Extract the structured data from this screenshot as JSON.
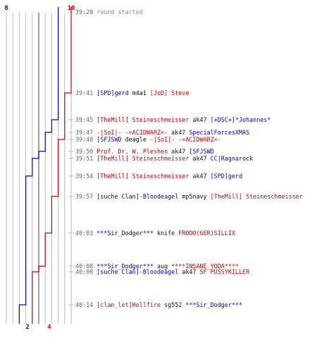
{
  "counts": {
    "blue_start": "8",
    "red_start": "10",
    "blue_end": "2",
    "red_end": "4"
  },
  "colors": {
    "blue_team": "#0000cc",
    "red_team": "#cc0000",
    "neutral": "#111111",
    "time": "#666666",
    "grid": "#bbbbbb",
    "centerline": "#888888"
  },
  "events": [
    {
      "time": "39:28",
      "parts": [
        {
          "text": "round started",
          "color": "grey"
        }
      ]
    },
    {
      "time": "39:41",
      "parts": [
        {
          "text": "[SPD]gerd",
          "color": "blue"
        },
        {
          "text": " m4a1 ",
          "color": "black"
        },
        {
          "text": "[JoD] Steve",
          "color": "red"
        }
      ]
    },
    {
      "time": "39:45",
      "parts": [
        {
          "text": "[TheMill] Steineschmeisser",
          "color": "red"
        },
        {
          "text": " ak47 ",
          "color": "black"
        },
        {
          "text": "[+DSC+]*Johannes*",
          "color": "blue"
        }
      ]
    },
    {
      "time": "39:47",
      "parts": [
        {
          "text": "-|SoI|- -=ACIDWARZ=-",
          "color": "red"
        },
        {
          "text": " ak47 ",
          "color": "black"
        },
        {
          "text": "SpecialForcesXMAS",
          "color": "blue"
        }
      ]
    },
    {
      "time": "39:48",
      "parts": [
        {
          "text": "[SFJSWD",
          "color": "blue"
        },
        {
          "text": " deagle ",
          "color": "black"
        },
        {
          "text": "-|SoI|- -=ACIDWARZ=-",
          "color": "red"
        }
      ]
    },
    {
      "time": "39:50",
      "parts": [
        {
          "text": "Prof. Dr. W. Pleshen",
          "color": "red"
        },
        {
          "text": " ak47 ",
          "color": "black"
        },
        {
          "text": "[SFJSWD",
          "color": "blue"
        }
      ]
    },
    {
      "time": "39:51",
      "parts": [
        {
          "text": "[TheMill] Steineschmeisser",
          "color": "red"
        },
        {
          "text": " ak47 ",
          "color": "black"
        },
        {
          "text": "CC|Ragnarock",
          "color": "blue"
        }
      ]
    },
    {
      "time": "39:54",
      "parts": [
        {
          "text": "[TheMill] Steineschmeisser",
          "color": "red"
        },
        {
          "text": " ak47 ",
          "color": "black"
        },
        {
          "text": "[SPD]gerd",
          "color": "blue"
        }
      ]
    },
    {
      "time": "39:57",
      "parts": [
        {
          "text": "[suche Clan]-Bloodeagel",
          "color": "blue"
        },
        {
          "text": " mp5navy ",
          "color": "black"
        },
        {
          "text": "[TheMill] Steineschmeisser",
          "color": "red"
        }
      ]
    },
    {
      "time": "40:03",
      "parts": [
        {
          "text": "***Sir_Dodger***",
          "color": "blue"
        },
        {
          "text": " knife ",
          "color": "black"
        },
        {
          "text": "FRODO(GER)SILLIX",
          "color": "red"
        }
      ]
    },
    {
      "time": "40:08",
      "parts": [
        {
          "text": "***Sir_Dodger***",
          "color": "blue"
        },
        {
          "text": " aug ",
          "color": "black"
        },
        {
          "text": "****INSANE_YODA****",
          "color": "red"
        }
      ]
    },
    {
      "time": "40:08",
      "parts": [
        {
          "text": "[suche Clan]-Bloodeagel",
          "color": "blue"
        },
        {
          "text": " ak47 ",
          "color": "black"
        },
        {
          "text": "SF PUSSYKILLER",
          "color": "red"
        }
      ]
    },
    {
      "time": "40:14",
      "parts": [
        {
          "text": "[clan_let]Hellfire",
          "color": "red"
        },
        {
          "text": " sg552 ",
          "color": "black"
        },
        {
          "text": "***Sir_Dodger***",
          "color": "blue"
        }
      ]
    }
  ],
  "chart_data": {
    "type": "line",
    "x": [
      "39:28",
      "39:41",
      "39:45",
      "39:47",
      "39:48",
      "39:50",
      "39:51",
      "39:54",
      "39:57",
      "40:03",
      "40:08",
      "40:08",
      "40:14"
    ],
    "series": [
      {
        "values": [
          8,
          8,
          7,
          6,
          6,
          5,
          4,
          3,
          3,
          3,
          3,
          3,
          2
        ],
        "color": "#0000cc"
      },
      {
        "values": [
          10,
          9,
          9,
          9,
          8,
          8,
          8,
          8,
          7,
          6,
          5,
          4,
          4
        ],
        "color": "#cc0000"
      }
    ],
    "ylim": [
      0,
      10
    ]
  }
}
